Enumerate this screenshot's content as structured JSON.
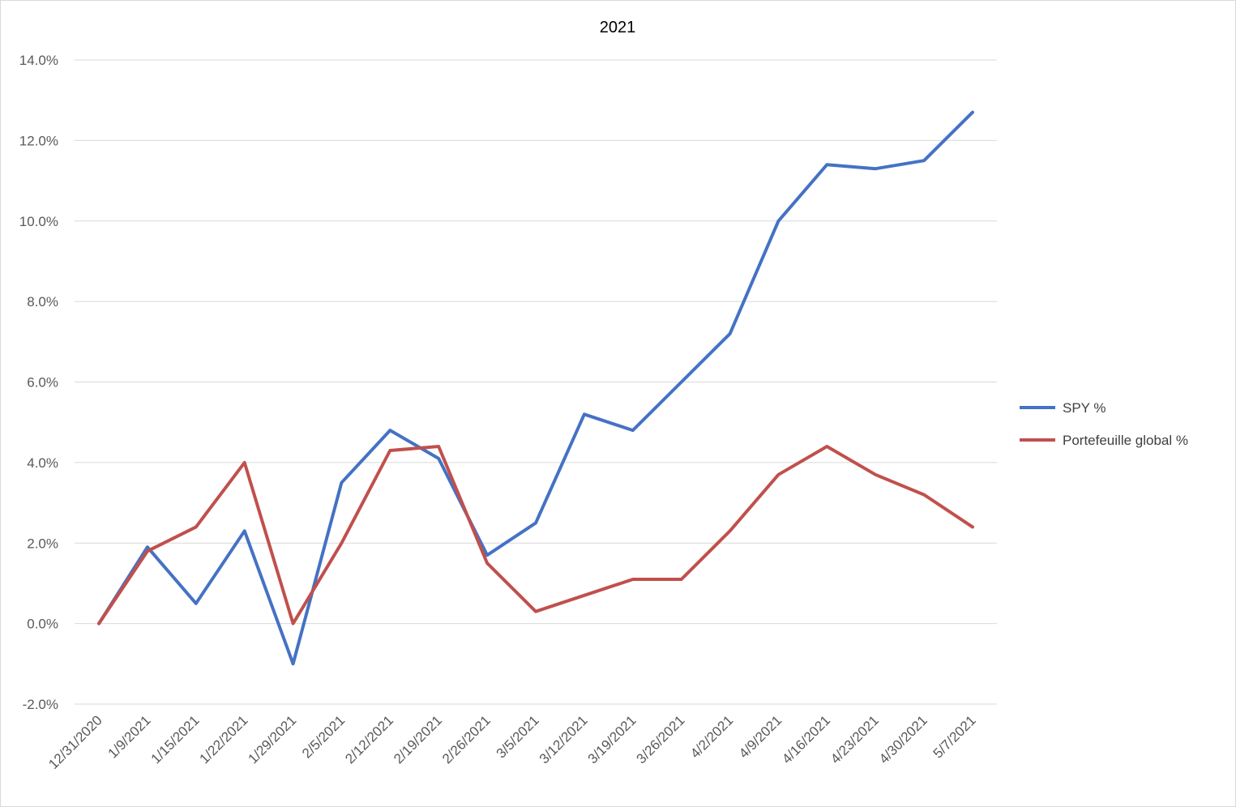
{
  "chart_data": {
    "type": "line",
    "title": "2021",
    "xlabel": "",
    "ylabel": "",
    "ylim": [
      -0.02,
      0.14
    ],
    "y_ticks": [
      "-2.0%",
      "0.0%",
      "2.0%",
      "4.0%",
      "6.0%",
      "8.0%",
      "10.0%",
      "12.0%",
      "14.0%"
    ],
    "grid": true,
    "legend_position": "right",
    "categories": [
      "12/31/2020",
      "1/9/2021",
      "1/15/2021",
      "1/22/2021",
      "1/29/2021",
      "2/5/2021",
      "2/12/2021",
      "2/19/2021",
      "2/26/2021",
      "3/5/2021",
      "3/12/2021",
      "3/19/2021",
      "3/26/2021",
      "4/2/2021",
      "4/9/2021",
      "4/16/2021",
      "4/23/2021",
      "4/30/2021",
      "5/7/2021"
    ],
    "series": [
      {
        "name": "SPY %",
        "color": "#4472c4",
        "values": [
          0.0,
          0.019,
          0.005,
          0.023,
          -0.01,
          0.035,
          0.048,
          0.041,
          0.017,
          0.025,
          0.052,
          0.048,
          0.06,
          0.072,
          0.1,
          0.114,
          0.113,
          0.115,
          0.127
        ]
      },
      {
        "name": "Portefeuille global %",
        "color": "#c0504d",
        "values": [
          0.0,
          0.018,
          0.024,
          0.04,
          0.0,
          0.02,
          0.043,
          0.044,
          0.015,
          0.003,
          0.007,
          0.011,
          0.011,
          0.023,
          0.037,
          0.044,
          0.037,
          0.032,
          0.024
        ]
      }
    ]
  }
}
